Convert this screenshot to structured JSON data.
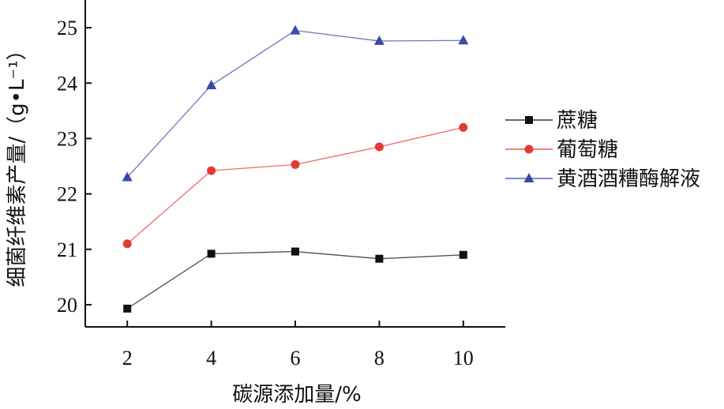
{
  "chart_data": {
    "type": "line",
    "title": "",
    "xlabel": "碳源添加量/%",
    "ylabel": "细菌纤维素产量/（g•L⁻¹）",
    "x": [
      2,
      4,
      6,
      8,
      10
    ],
    "xticks": [
      "2",
      "4",
      "6",
      "8",
      "10"
    ],
    "yticks": [
      "20",
      "21",
      "22",
      "23",
      "24",
      "25"
    ],
    "xlim": [
      1,
      11
    ],
    "ylim": [
      19.6,
      25.5
    ],
    "grid": false,
    "legend_position": "right",
    "series": [
      {
        "name": "蔗糖",
        "values": [
          19.93,
          20.92,
          20.96,
          20.83,
          20.9
        ],
        "color": "#111111",
        "marker": "square"
      },
      {
        "name": "葡萄糖",
        "values": [
          21.1,
          22.42,
          22.53,
          22.85,
          23.2
        ],
        "color": "#e53935",
        "marker": "circle"
      },
      {
        "name": "黄酒酒糟酶解液",
        "values": [
          22.3,
          23.96,
          24.95,
          24.76,
          24.77
        ],
        "color": "#3949ab",
        "marker": "triangle"
      }
    ]
  }
}
